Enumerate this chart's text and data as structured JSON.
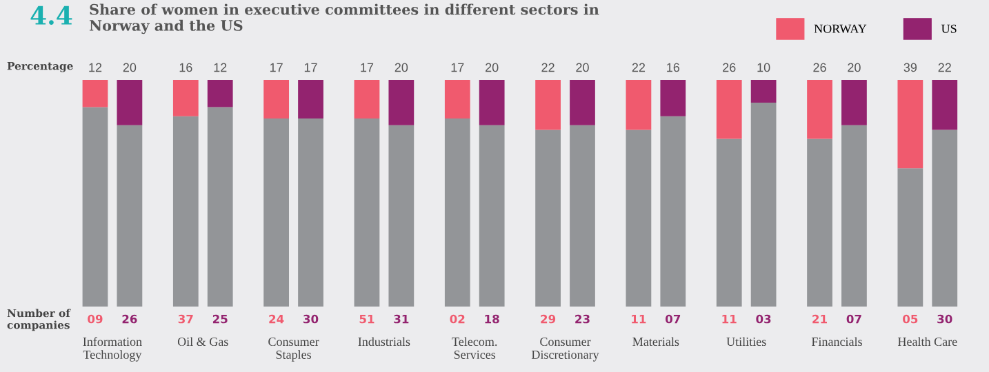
{
  "chart_data": [
    {
      "type": "bar",
      "title": "Share of women in executive committees in different sectors in\nNorway and the US",
      "annotations": [
        "4.4",
        "Percentage",
        "Number of\ncompanies",
        "09",
        "37",
        "24",
        "51",
        "02",
        "29",
        "11",
        "11",
        "21",
        "05"
      ],
      "categories": [
        "Information\nTechnology",
        "Oil & Gas",
        "Consumer\nStaples",
        "Industrials",
        "Telecom.\nServices",
        "Consumer\nDiscretionary",
        "Materials",
        "Utilities",
        "Financials",
        "Health Care"
      ],
      "stacked": true,
      "ylim": [
        0,
        100
      ],
      "tick_labels": "x",
      "legend": "top right",
      "series": [
        {
          "color": "#939598",
          "values": [
            88,
            84,
            83,
            83,
            83,
            78,
            78,
            74,
            74,
            61
          ]
        },
        {
          "name": "NORWAY",
          "color": "#f05a6e",
          "values": [
            12,
            16,
            17,
            17,
            17,
            22,
            22,
            26,
            26,
            39
          ],
          "value_labels": [
            "12",
            "16",
            "17",
            "17",
            "17",
            "22",
            "22",
            "26",
            "26",
            "39"
          ]
        }
      ]
    },
    {
      "type": "bar",
      "annotations": [
        "26",
        "25",
        "30",
        "31",
        "18",
        "23",
        "07",
        "03",
        "07",
        "30"
      ],
      "categories": [
        null,
        null,
        null,
        null,
        null,
        null,
        null,
        null,
        null,
        null
      ],
      "stacked": true,
      "ylim": [
        0,
        100
      ],
      "tick_labels": false,
      "legend": "top right",
      "series": [
        {
          "color": "#939598",
          "values": [
            80,
            88,
            83,
            80,
            80,
            80,
            84,
            90,
            80,
            78
          ]
        },
        {
          "name": "US",
          "color": "#93236f",
          "values": [
            20,
            12,
            17,
            20,
            20,
            20,
            16,
            10,
            20,
            22
          ],
          "value_labels": [
            "20",
            "12",
            "17",
            "20",
            "20",
            "20",
            "16",
            "10",
            "20",
            "22"
          ]
        }
      ]
    }
  ]
}
